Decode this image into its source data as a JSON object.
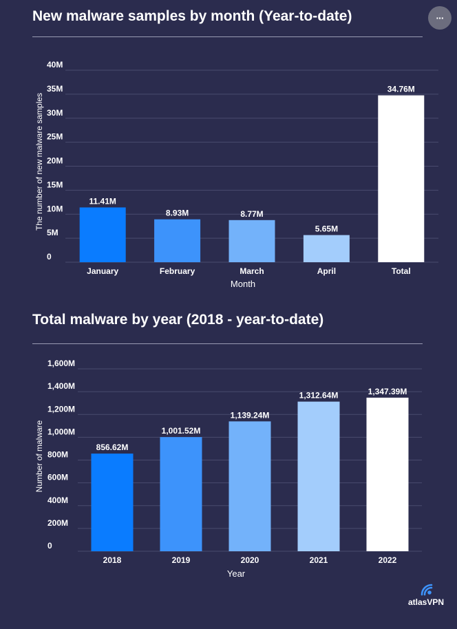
{
  "header": {
    "more_button_label": "···"
  },
  "colors": {
    "background": "#2b2c4e",
    "bar_shades": [
      "#0a7cff",
      "#3d93fb",
      "#73b2fa",
      "#a3cdfc",
      "#ffffff"
    ]
  },
  "icons": {
    "more": "more-horizontal-icon",
    "logo": "atlasvpn-signal-icon"
  },
  "logo": {
    "text": "atlasVPN"
  },
  "chart_data": [
    {
      "type": "bar",
      "title": "New malware samples by month (Year-to-date)",
      "xlabel": "Month",
      "ylabel": "The number of new malware samples",
      "categories": [
        "January",
        "February",
        "March",
        "April",
        "Total"
      ],
      "values": [
        11.41,
        8.93,
        8.77,
        5.65,
        34.76
      ],
      "data_labels": [
        "11.41M",
        "8.93M",
        "8.77M",
        "5.65M",
        "34.76M"
      ],
      "y_ticks": [
        0,
        5,
        10,
        15,
        20,
        25,
        30,
        35,
        40
      ],
      "y_tick_labels": [
        "0",
        "5M",
        "10M",
        "15M",
        "20M",
        "25M",
        "30M",
        "35M",
        "40M"
      ],
      "ylim": [
        0,
        40
      ],
      "grid": true,
      "legend": "none"
    },
    {
      "type": "bar",
      "title": "Total malware by year (2018 - year-to-date)",
      "xlabel": "Year",
      "ylabel": "Number of malware",
      "categories": [
        "2018",
        "2019",
        "2020",
        "2021",
        "2022"
      ],
      "values": [
        856.62,
        1001.52,
        1139.24,
        1312.64,
        1347.39
      ],
      "data_labels": [
        "856.62M",
        "1,001.52M",
        "1,139.24M",
        "1,312.64M",
        "1,347.39M"
      ],
      "y_ticks": [
        0,
        200,
        400,
        600,
        800,
        1000,
        1200,
        1400,
        1600
      ],
      "y_tick_labels": [
        "0",
        "200M",
        "400M",
        "600M",
        "800M",
        "1,000M",
        "1,200M",
        "1,400M",
        "1,600M"
      ],
      "ylim": [
        0,
        1600
      ],
      "grid": true,
      "legend": "none"
    }
  ]
}
